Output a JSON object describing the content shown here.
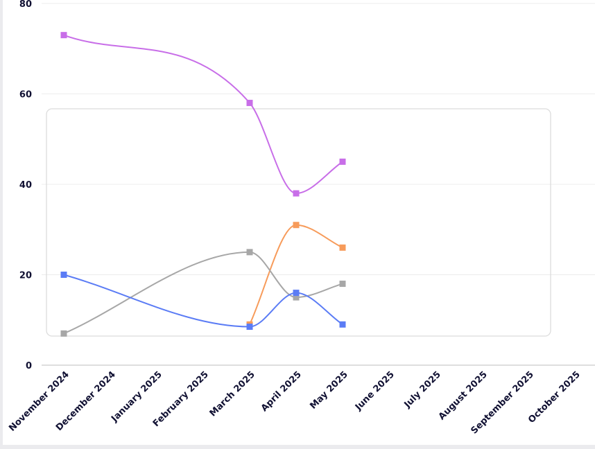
{
  "chart_data": {
    "type": "line",
    "title": "",
    "xlabel": "",
    "ylabel": "",
    "ylim": [
      0,
      80
    ],
    "yticks": [
      0,
      20,
      40,
      60,
      80
    ],
    "categories": [
      "November 2024",
      "December 2024",
      "January 2025",
      "February 2025",
      "March 2025",
      "April 2025",
      "May 2025",
      "June 2025",
      "July 2025",
      "August 2025",
      "September 2025",
      "October 2025"
    ],
    "grid": true,
    "legend": "none",
    "series": [
      {
        "color": "#c86ee8",
        "values": [
          73,
          null,
          null,
          null,
          58,
          38,
          45,
          null,
          null,
          null,
          null,
          null
        ]
      },
      {
        "color": "#f79b5a",
        "values": [
          null,
          null,
          null,
          null,
          9,
          31,
          26,
          null,
          null,
          null,
          null,
          null
        ]
      },
      {
        "color": "#a7a7a7",
        "values": [
          7,
          null,
          null,
          null,
          25,
          15,
          18,
          null,
          null,
          null,
          null,
          null
        ]
      },
      {
        "color": "#5b7cf5",
        "values": [
          20,
          null,
          null,
          null,
          8.5,
          16,
          9,
          null,
          null,
          null,
          null,
          null
        ]
      }
    ]
  }
}
